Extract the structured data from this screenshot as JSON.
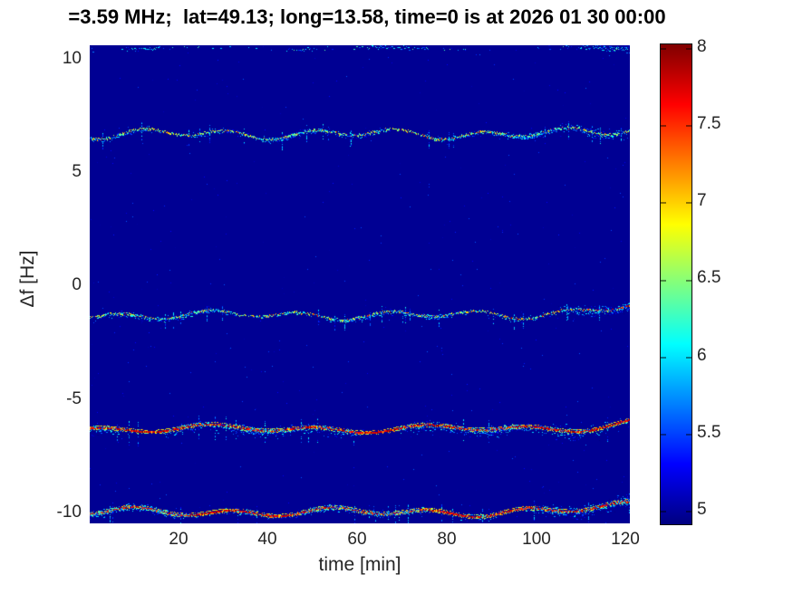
{
  "title": "=3.59 MHz;  lat=49.13; long=13.58, time=0 is at 2026 01 30 00:00",
  "colors": {
    "figure_background": "#ffffff",
    "plot_background": "#000093",
    "title_text": "#000000",
    "axis_text": "#262626",
    "colormap": "jet"
  },
  "chart_data": {
    "type": "heatmap",
    "title": "=3.59 MHz;  lat=49.13; long=13.58, time=0 is at 2026 01 30 00:00",
    "xlabel": "time [min]",
    "ylabel": "Δf [Hz]",
    "xlim": [
      0.3,
      121.2
    ],
    "ylim": [
      -10.42,
      10.53
    ],
    "xticks": [
      20,
      40,
      60,
      80,
      100,
      120
    ],
    "yticks": [
      10,
      5,
      0,
      -5,
      -10
    ],
    "grid": false,
    "legend": "none",
    "background_value": 4.97,
    "noise_density": 0.0014,
    "colorbar": {
      "min": 4.91,
      "max": 8.02,
      "ticks": [
        8,
        7.5,
        7,
        6.5,
        6,
        5.5,
        5
      ],
      "colormap": "jet",
      "position": "right"
    },
    "bands": [
      {
        "name": "top-edge-trace",
        "center_hz": 10.38,
        "wiggles": [
          [
            0.05,
            40,
            1.0
          ]
        ],
        "tail_rise_hz": 0.03,
        "tail_len_min": 20,
        "tail_density": 2.0,
        "core": "none",
        "spread_hz": 0.09,
        "density": 0.8,
        "gappy": true,
        "seed": 11
      },
      {
        "name": "doppler-trace-plus-6.6Hz",
        "center_hz": 6.62,
        "wiggles": [
          [
            0.16,
            19,
            0.8
          ],
          [
            0.1,
            43,
            2.0
          ]
        ],
        "tail_rise_hz": 0.22,
        "tail_len_min": 16,
        "tail_density": 2.4,
        "core": "speckle",
        "core_red_prob": 0.05,
        "spread_hz": 0.13,
        "density": 1.5,
        "seed": 21
      },
      {
        "name": "doppler-trace-minus-1.3Hz",
        "center_hz": -1.32,
        "wiggles": [
          [
            0.14,
            20,
            2.6
          ],
          [
            0.08,
            47,
            0.5
          ]
        ],
        "tail_rise_hz": 0.42,
        "tail_len_min": 27,
        "tail_density": 2.8,
        "tail_red_prob": 0.5,
        "core": "speckle",
        "core_red_prob": 0.08,
        "spread_hz": 0.12,
        "density": 1.4,
        "seed": 31
      },
      {
        "name": "doppler-trace-minus-6.3Hz",
        "center_hz": -6.3,
        "wiggles": [
          [
            0.12,
            24,
            4.0
          ],
          [
            0.08,
            53,
            1.2
          ]
        ],
        "tail_rise_hz": 0.3,
        "tail_len_min": 18,
        "tail_density": 3.2,
        "core": "strong",
        "spread_hz": 0.18,
        "density": 2.4,
        "burst_bias": 0.35,
        "seed": 41
      },
      {
        "name": "doppler-trace-minus-10Hz",
        "center_hz": -9.95,
        "wiggles": [
          [
            0.14,
            22,
            1.9
          ],
          [
            0.08,
            49,
            3.5
          ]
        ],
        "tail_rise_hz": 0.35,
        "tail_len_min": 20,
        "tail_density": 3.5,
        "core": "strong",
        "spread_hz": 0.15,
        "density": 2.2,
        "seed": 51
      }
    ]
  }
}
